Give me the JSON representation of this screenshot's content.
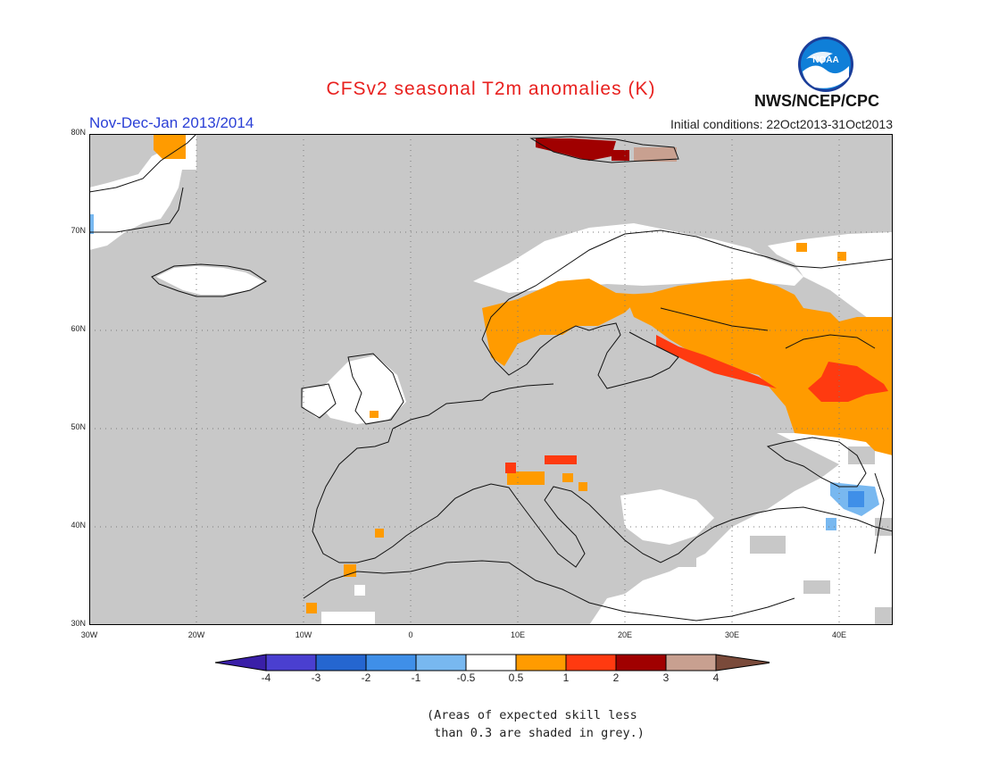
{
  "header": {
    "title": "CFSv2 seasonal T2m anomalies (K)",
    "period": "Nov-Dec-Jan 2013/2014",
    "initial_conditions": "Initial conditions: 22Oct2013-31Oct2013",
    "org": "NWS/NCEP/CPC",
    "logo_text": "NOAA"
  },
  "map": {
    "lat_labels": [
      "80N",
      "70N",
      "60N",
      "50N",
      "40N",
      "30N"
    ],
    "lon_labels": [
      "30W",
      "20W",
      "10W",
      "0",
      "10E",
      "20E",
      "30E",
      "40E"
    ],
    "extent": {
      "lon": [
        -30,
        45
      ],
      "lat": [
        30,
        80
      ]
    },
    "base_color": "#c8c8c8",
    "unshaded_color": "#ffffff"
  },
  "legend": {
    "labels": [
      "-4",
      "-3",
      "-2",
      "-1",
      "-0.5",
      "0.5",
      "1",
      "2",
      "3",
      "4"
    ],
    "colors": [
      "#3a1fa8",
      "#4a3fd0",
      "#2566d0",
      "#3f8fe8",
      "#78b8f0",
      "#ffffff",
      "#ff9b00",
      "#ff3a10",
      "#a00000",
      "#c8a090",
      "#7a4a3a"
    ]
  },
  "note": {
    "line1": "(Areas of expected skill less",
    "line2": " than 0.3 are shaded in grey.)"
  }
}
